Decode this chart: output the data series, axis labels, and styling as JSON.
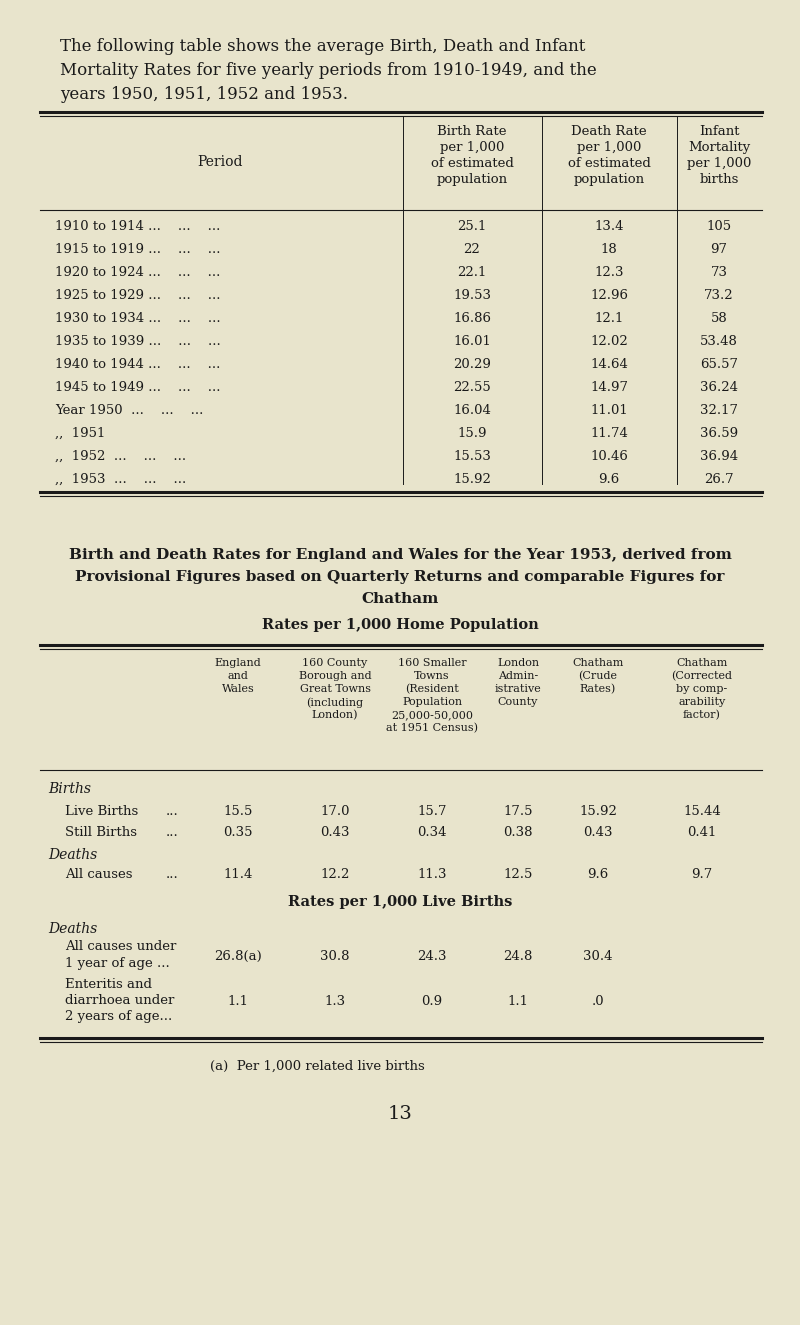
{
  "bg_color": "#e8e4cc",
  "text_color": "#1a1a1a",
  "intro_lines": [
    "The following table shows the average Birth, Death and Infant",
    "Mortality Rates for five yearly periods from 1910-1949, and the",
    "years 1950, 1951, 1952 and 1953."
  ],
  "t1_rows": [
    [
      "1910 to 1914 ...    ...    ...",
      "25.1",
      "13.4",
      "105"
    ],
    [
      "1915 to 1919 ...    ...    ...",
      "22",
      "18",
      "97"
    ],
    [
      "1920 to 1924 ...    ...    ...",
      "22.1",
      "12.3",
      "73"
    ],
    [
      "1925 to 1929 ...    ...    ...",
      "19.53",
      "12.96",
      "73.2"
    ],
    [
      "1930 to 1934 ...    ...    ...",
      "16.86",
      "12.1",
      "58"
    ],
    [
      "1935 to 1939 ...    ...    ...",
      "16.01",
      "12.02",
      "53.48"
    ],
    [
      "1940 to 1944 ...    ...    ...",
      "20.29",
      "14.64",
      "65.57"
    ],
    [
      "1945 to 1949 ...    ...    ...",
      "22.55",
      "14.97",
      "36.24"
    ],
    [
      "Year 1950  ...    ...    ...",
      "16.04",
      "11.01",
      "32.17"
    ],
    [
      ",,  1951",
      "15.9",
      "11.74",
      "36.59"
    ],
    [
      ",,  1952  ...    ...    ...",
      "15.53",
      "10.46",
      "36.94"
    ],
    [
      ",,  1953  ...    ...    ...",
      "15.92",
      "9.6",
      "26.7"
    ]
  ],
  "t2_col_hdrs": [
    "England\nand\nWales",
    "160 County\nBorough and\nGreat Towns\n(including\nLondon)",
    "160 Smaller\nTowns\n(Resident\nPopulation\n25,000-50,000\nat 1951 Census)",
    "London\nAdmin-\nistrative\nCounty",
    "Chatham\n(Crude\nRates)",
    "Chatham\n(Corrected\nby comp-\narability\nfactor)"
  ],
  "lb_vals": [
    "15.5",
    "17.0",
    "15.7",
    "17.5",
    "15.92",
    "15.44"
  ],
  "sb_vals": [
    "0.35",
    "0.43",
    "0.34",
    "0.38",
    "0.43",
    "0.41"
  ],
  "ac_vals": [
    "11.4",
    "12.2",
    "11.3",
    "12.5",
    "9.6",
    "9.7"
  ],
  "ac1_vals": [
    "26.8(a)",
    "30.8",
    "24.3",
    "24.8",
    "30.4",
    ""
  ],
  "ent_vals": [
    "1.1",
    "1.3",
    "0.9",
    "1.1",
    ".0",
    ""
  ],
  "footnote": "(a)  Per 1,000 related live births",
  "page_num": "13",
  "s2_title_lines": [
    "Birth and Death Rates for England and Wales for the Year 1953, derived from",
    "Provisional Figures based on Quarterly Returns and comparable Figures for",
    "Chatham"
  ]
}
